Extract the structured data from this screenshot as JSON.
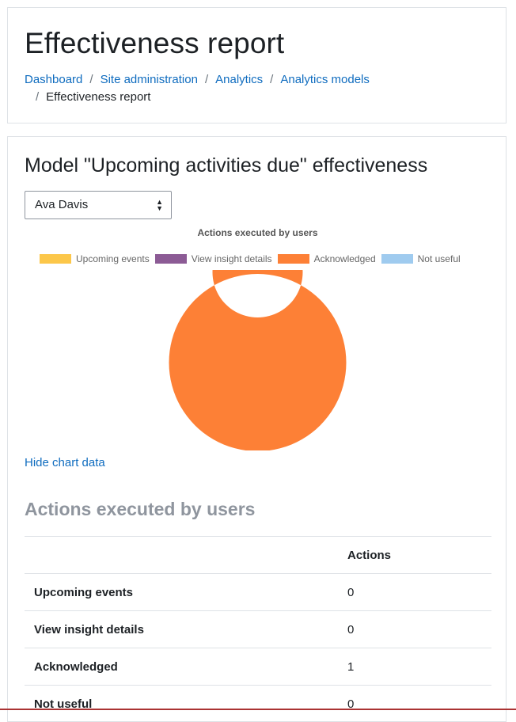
{
  "header": {
    "title": "Effectiveness report",
    "breadcrumb": {
      "items": [
        "Dashboard",
        "Site administration",
        "Analytics",
        "Analytics models"
      ],
      "current": "Effectiveness report"
    }
  },
  "main": {
    "model_title": "Model \"Upcoming activities due\" effectiveness",
    "user_select": {
      "value": "Ava Davis"
    },
    "hide_chart_link": "Hide chart data",
    "table_heading": "Actions executed by users"
  },
  "chart_data": {
    "type": "pie",
    "donut": true,
    "title": "Actions executed by users",
    "legend_position": "top",
    "categories": [
      "Upcoming events",
      "View insight details",
      "Acknowledged",
      "Not useful"
    ],
    "values": [
      0,
      0,
      1,
      0
    ],
    "colors": [
      "#fcc74a",
      "#8c5b95",
      "#fd8036",
      "#9fcbef"
    ]
  },
  "table": {
    "headers": [
      "",
      "Actions"
    ],
    "rows": [
      {
        "label": "Upcoming events",
        "value": "0"
      },
      {
        "label": "View insight details",
        "value": "0"
      },
      {
        "label": "Acknowledged",
        "value": "1"
      },
      {
        "label": "Not useful",
        "value": "0"
      }
    ]
  }
}
